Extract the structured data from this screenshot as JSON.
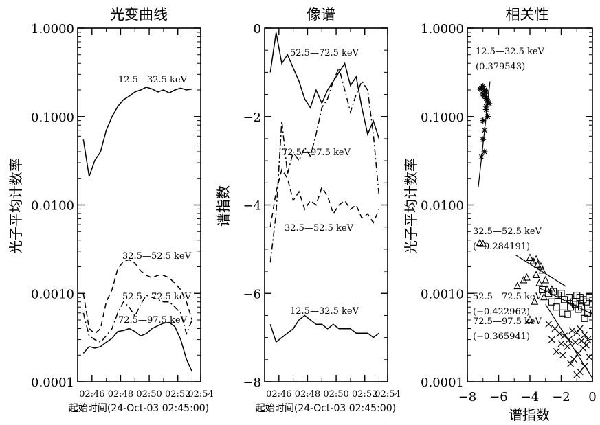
{
  "chart_data": [
    {
      "type": "line",
      "title": "光变曲线",
      "ylabel": "光子平均计数率",
      "xlabel": "起始时间(24-Oct-03 02:45:00)",
      "yscale": "log",
      "ylim": [
        0.0001,
        1.0
      ],
      "yticks": [
        "1.0000",
        "0.1000",
        "0.0100",
        "0.0010",
        "0.0001"
      ],
      "xlim": [
        0,
        8.6
      ],
      "xticks": [
        "02:46",
        "02:48",
        "02:50",
        "02:52",
        "02:54"
      ],
      "x": [
        0.4,
        0.8,
        1.2,
        1.6,
        2.0,
        2.4,
        2.8,
        3.2,
        3.6,
        4.0,
        4.4,
        4.8,
        5.2,
        5.6,
        6.0,
        6.4,
        6.8,
        7.2,
        7.6,
        8.0
      ],
      "series": [
        {
          "name": "12.5—32.5 keV",
          "style": "solid",
          "values": [
            0.055,
            0.021,
            0.032,
            0.04,
            0.07,
            0.1,
            0.13,
            0.155,
            0.17,
            0.19,
            0.2,
            0.215,
            0.205,
            0.19,
            0.2,
            0.185,
            0.2,
            0.21,
            0.2,
            0.205
          ]
        },
        {
          "name": "32.5—52.5 keV",
          "style": "dashed",
          "values": [
            0.001,
            0.0004,
            0.00035,
            0.0004,
            0.0008,
            0.0011,
            0.0019,
            0.0023,
            0.0024,
            0.0022,
            0.0018,
            0.0016,
            0.0015,
            0.0016,
            0.0016,
            0.0015,
            0.0013,
            0.0011,
            0.0008,
            0.0005
          ]
        },
        {
          "name": "52.5—72.5 keV",
          "style": "dash-dot",
          "values": [
            0.0006,
            0.00033,
            0.0003,
            0.00028,
            0.00033,
            0.0004,
            0.0006,
            0.0008,
            0.0007,
            0.00055,
            0.00075,
            0.00095,
            0.0009,
            0.00085,
            0.0008,
            0.0008,
            0.0007,
            0.0006,
            0.00035,
            0.0005
          ]
        },
        {
          "name": "72.5—97.5 keV",
          "style": "solid",
          "values": [
            0.00021,
            0.00025,
            0.00024,
            0.00025,
            0.00028,
            0.00031,
            0.00037,
            0.00038,
            0.0004,
            0.00037,
            0.00033,
            0.00035,
            0.0004,
            0.00043,
            0.00046,
            0.00047,
            0.00042,
            0.0003,
            0.00018,
            0.00013
          ]
        }
      ]
    },
    {
      "type": "line",
      "title": "像谱",
      "ylabel": "谱指数",
      "xlabel": "起始时间(24-Oct-03 02:45:00)",
      "ylim": [
        -8,
        0
      ],
      "yticks": [
        "0",
        "−2",
        "−4",
        "−6",
        "−8"
      ],
      "xlim": [
        0,
        8.6
      ],
      "xticks": [
        "02:46",
        "02:48",
        "02:50",
        "02:52",
        "02:54"
      ],
      "x": [
        0.4,
        0.8,
        1.2,
        1.6,
        2.0,
        2.4,
        2.8,
        3.2,
        3.6,
        4.0,
        4.4,
        4.8,
        5.2,
        5.6,
        6.0,
        6.4,
        6.8,
        7.2,
        7.6,
        8.0
      ],
      "series": [
        {
          "name": "52.5—72.5 keV",
          "style": "solid",
          "values": [
            -1.0,
            -0.1,
            -0.8,
            -0.6,
            -0.9,
            -1.2,
            -1.6,
            -1.8,
            -1.4,
            -1.7,
            -1.4,
            -1.2,
            -1.0,
            -0.8,
            -1.3,
            -1.1,
            -1.8,
            -2.4,
            -2.1,
            -2.5
          ]
        },
        {
          "name": "72.5—97.5 keV",
          "style": "dash-dot",
          "values": [
            -5.3,
            -4.2,
            -2.1,
            -3.3,
            -2.8,
            -3.0,
            -2.7,
            -2.9,
            -2.4,
            -1.8,
            -1.6,
            -1.2,
            -0.9,
            -1.4,
            -1.9,
            -1.5,
            -1.2,
            -1.4,
            -2.4,
            -3.8
          ]
        },
        {
          "name": "32.5—52.5 keV",
          "style": "dashed",
          "values": [
            -4.5,
            -3.7,
            -3.2,
            -3.4,
            -3.9,
            -3.7,
            -4.1,
            -3.9,
            -4.0,
            -3.6,
            -3.8,
            -4.2,
            -4.0,
            -3.9,
            -4.1,
            -4.0,
            -4.3,
            -4.2,
            -4.4,
            -4.1
          ]
        },
        {
          "name": "12.5—32.5 keV",
          "style": "solid",
          "values": [
            -6.7,
            -7.1,
            -7.0,
            -6.9,
            -6.8,
            -6.6,
            -6.5,
            -6.6,
            -6.7,
            -6.7,
            -6.8,
            -6.7,
            -6.8,
            -6.8,
            -6.8,
            -6.9,
            -6.9,
            -6.9,
            -7.0,
            -6.9
          ]
        }
      ]
    },
    {
      "type": "scatter",
      "title": "相关性",
      "ylabel": "光子平均计数率",
      "xlabel": "谱指数",
      "yscale": "log",
      "ylim": [
        0.0001,
        1.0
      ],
      "yticks": [
        "1.0000",
        "0.1000",
        "0.0100",
        "0.0010",
        "0.0001"
      ],
      "xlim": [
        -8,
        0
      ],
      "xticks": [
        "−8",
        "−6",
        "−4",
        "−2",
        "0"
      ],
      "series": [
        {
          "name": "12.5—32.5 keV",
          "correlation": "(0.379543)",
          "marker": "asterisk",
          "x": [
            -7.1,
            -6.9,
            -7.0,
            -6.8,
            -7.2,
            -6.7,
            -7.0,
            -6.9,
            -6.6,
            -6.8,
            -7.0,
            -6.9,
            -6.7,
            -6.8,
            -7.1,
            -6.9,
            -7.0,
            -6.8
          ],
          "y": [
            0.21,
            0.2,
            0.18,
            0.19,
            0.205,
            0.15,
            0.22,
            0.17,
            0.14,
            0.12,
            0.09,
            0.07,
            0.1,
            0.13,
            0.035,
            0.04,
            0.055,
            0.16
          ],
          "fit": {
            "x": [
              -7.3,
              -6.55
            ],
            "y": [
              0.016,
              0.25
            ]
          }
        },
        {
          "name": "32.5—52.5 keV",
          "correlation": "(−0.284191)",
          "marker": "triangle",
          "x": [
            -7.2,
            -7.0,
            -4.0,
            -3.8,
            -3.6,
            -3.5,
            -3.3,
            -3.2,
            -3.6,
            -4.2,
            -3.0,
            -4.4,
            -2.9,
            -3.4,
            -4.8,
            -3.1,
            -2.6,
            -3.7,
            -4.0
          ],
          "y": [
            0.0037,
            0.0036,
            0.0025,
            0.0023,
            0.0024,
            0.0021,
            0.002,
            0.0018,
            0.0016,
            0.0015,
            0.0014,
            0.0014,
            0.0011,
            0.0013,
            0.0012,
            0.0009,
            0.0011,
            0.0008,
            0.0005
          ],
          "fit": {
            "x": [
              -4.9,
              -1.7
            ],
            "y": [
              0.0027,
              0.0012
            ]
          }
        },
        {
          "name": "52.5—72.5 keV",
          "correlation": "(−0.422962)",
          "marker": "square",
          "x": [
            -3.2,
            -2.8,
            -2.5,
            -2.2,
            -2.0,
            -1.8,
            -1.5,
            -1.2,
            -1.0,
            -0.8,
            -0.6,
            -0.4,
            -0.2,
            -1.4,
            -2.3,
            -1.9,
            -0.7,
            -0.3,
            -1.1,
            -2.6,
            -0.5,
            -1.6,
            -0.9
          ],
          "y": [
            0.0011,
            0.001,
            0.00105,
            0.00095,
            0.001,
            0.00085,
            0.0009,
            0.0008,
            0.00095,
            0.0009,
            0.00085,
            0.0008,
            0.0009,
            0.0007,
            0.0007,
            0.0006,
            0.0007,
            0.0006,
            0.00075,
            0.0008,
            0.00052,
            0.00058,
            0.00066
          ],
          "fit": {
            "x": [
              -3.4,
              0.0
            ],
            "y": [
              0.00115,
              0.00058
            ]
          }
        },
        {
          "name": "72.5—97.5 keV",
          "correlation": "(−0.365941)",
          "marker": "cross",
          "x": [
            -2.8,
            -2.4,
            -2.1,
            -1.8,
            -1.5,
            -1.3,
            -1.0,
            -0.8,
            -0.5,
            -0.3,
            -2.6,
            -2.0,
            -1.6,
            -1.1,
            -0.7,
            -0.4,
            -2.3,
            -1.9,
            -1.2,
            -0.9,
            -0.6,
            -1.4,
            -0.2,
            -0.5,
            -0.8,
            -1.0
          ],
          "y": [
            0.00045,
            0.0004,
            0.00035,
            0.00033,
            0.0003,
            0.00038,
            0.00036,
            0.0004,
            0.00034,
            0.0003,
            0.0003,
            0.00027,
            0.00025,
            0.00028,
            0.00029,
            0.00026,
            0.00022,
            0.0002,
            0.00018,
            0.00021,
            0.00024,
            0.00016,
            0.00019,
            0.00015,
            0.00013,
            0.00012
          ],
          "fit": {
            "x": [
              -3.0,
              0.0
            ],
            "y": [
              0.00075,
              0.00011
            ]
          }
        }
      ]
    }
  ]
}
